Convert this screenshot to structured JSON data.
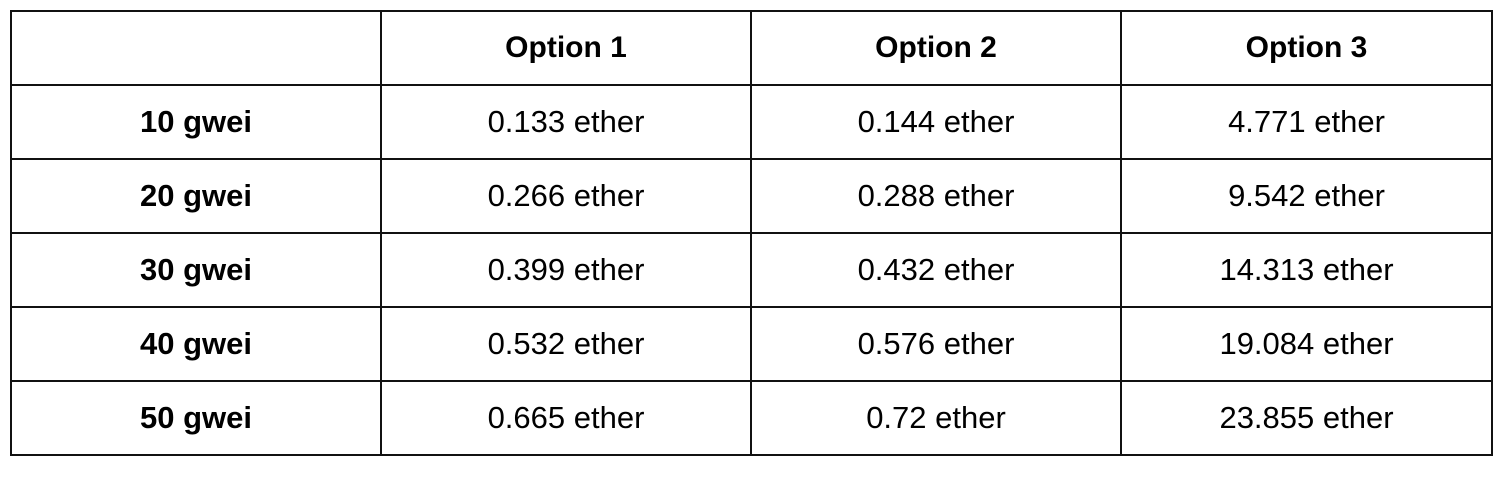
{
  "table": {
    "corner": "",
    "columns": [
      "Option 1",
      "Option 2",
      "Option 3"
    ],
    "rows": [
      {
        "label": "10 gwei",
        "values": [
          "0.133 ether",
          "0.144 ether",
          "4.771 ether"
        ]
      },
      {
        "label": "20 gwei",
        "values": [
          "0.266 ether",
          "0.288 ether",
          "9.542 ether"
        ]
      },
      {
        "label": "30 gwei",
        "values": [
          "0.399 ether",
          "0.432 ether",
          "14.313 ether"
        ]
      },
      {
        "label": "40 gwei",
        "values": [
          "0.532 ether",
          "0.576 ether",
          "19.084 ether"
        ]
      },
      {
        "label": "50 gwei",
        "values": [
          "0.665 ether",
          "0.72 ether",
          "23.855 ether"
        ]
      }
    ]
  }
}
